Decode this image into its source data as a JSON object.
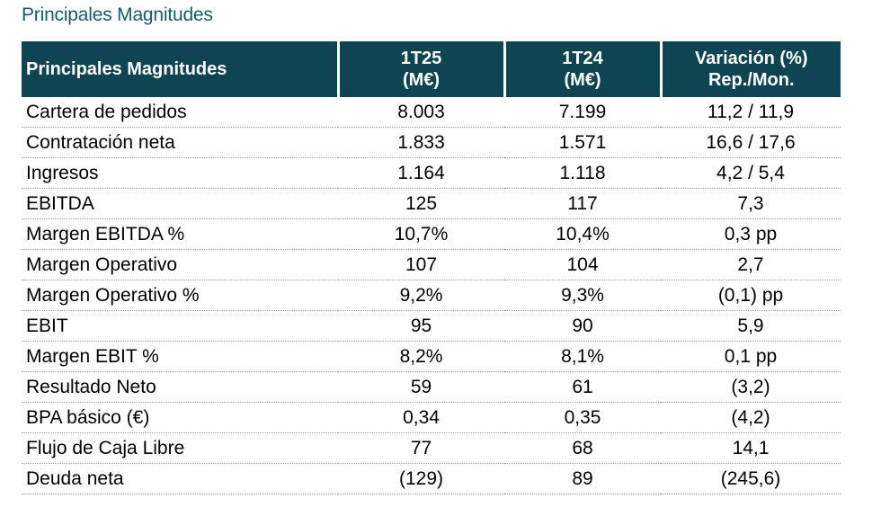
{
  "page_title": "Principales Magnitudes",
  "table": {
    "headers": [
      {
        "line1": "Principales Magnitudes",
        "line2": ""
      },
      {
        "line1": "1T25",
        "line2": "(M€)"
      },
      {
        "line1": "1T24",
        "line2": "(M€)"
      },
      {
        "line1": "Variación (%)",
        "line2": "Rep./Mon."
      }
    ],
    "rows": [
      {
        "label": "Cartera de pedidos",
        "t25": "8.003",
        "t24": "7.199",
        "var": "11,2 / 11,9"
      },
      {
        "label": "Contratación neta",
        "t25": "1.833",
        "t24": "1.571",
        "var": "16,6 / 17,6"
      },
      {
        "label": "Ingresos",
        "t25": "1.164",
        "t24": "1.118",
        "var": "4,2 / 5,4"
      },
      {
        "label": "EBITDA",
        "t25": "125",
        "t24": "117",
        "var": "7,3"
      },
      {
        "label": "Margen EBITDA %",
        "t25": "10,7%",
        "t24": "10,4%",
        "var": "0,3 pp"
      },
      {
        "label": "Margen Operativo",
        "t25": "107",
        "t24": "104",
        "var": "2,7"
      },
      {
        "label": "Margen Operativo %",
        "t25": "9,2%",
        "t24": "9,3%",
        "var": "(0,1) pp"
      },
      {
        "label": "EBIT",
        "t25": "95",
        "t24": "90",
        "var": "5,9"
      },
      {
        "label": "Margen EBIT %",
        "t25": "8,2%",
        "t24": "8,1%",
        "var": "0,1 pp"
      },
      {
        "label": "Resultado Neto",
        "t25": "59",
        "t24": "61",
        "var": "(3,2)"
      },
      {
        "label": "BPA básico (€)",
        "t25": "0,34",
        "t24": "0,35",
        "var": "(4,2)"
      },
      {
        "label": "Flujo de Caja Libre",
        "t25": "77",
        "t24": "68",
        "var": "14,1"
      },
      {
        "label": "Deuda neta",
        "t25": "(129)",
        "t24": "89",
        "var": "(245,6)"
      }
    ]
  },
  "colors": {
    "title": "#1a5a6b",
    "header_bg": "#0f4553",
    "header_text": "#ffffff"
  }
}
